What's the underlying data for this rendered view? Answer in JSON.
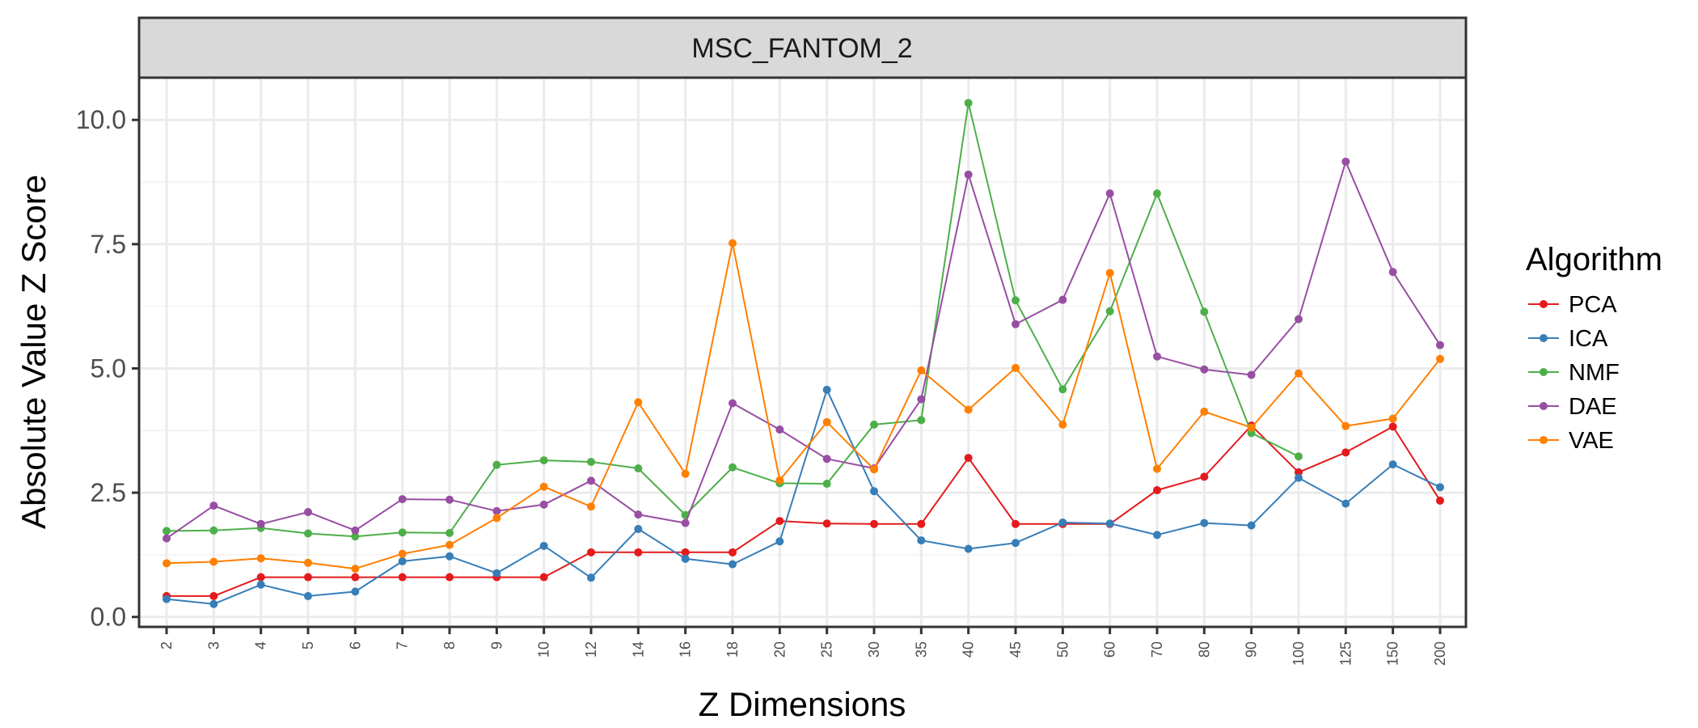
{
  "chart_data": {
    "type": "line",
    "panel_title": "MSC_FANTOM_2",
    "xlabel": "Z Dimensions",
    "ylabel": "Absolute Value Z Score",
    "categories": [
      "2",
      "3",
      "4",
      "5",
      "6",
      "7",
      "8",
      "9",
      "10",
      "12",
      "14",
      "16",
      "18",
      "20",
      "25",
      "30",
      "35",
      "40",
      "45",
      "50",
      "60",
      "70",
      "80",
      "90",
      "100",
      "125",
      "150",
      "200"
    ],
    "ylim": [
      -0.2,
      10.85
    ],
    "yticks": [
      0.0,
      2.5,
      5.0,
      7.5,
      10.0
    ],
    "ytick_labels": [
      "0.0",
      "2.5",
      "5.0",
      "7.5",
      "10.0"
    ],
    "grid": true,
    "legend": {
      "title": "Algorithm",
      "position": "right"
    },
    "series": [
      {
        "name": "PCA",
        "color": "#e41a1c",
        "values": [
          0.42,
          0.42,
          0.8,
          0.8,
          0.8,
          0.8,
          0.8,
          0.8,
          0.8,
          1.3,
          1.3,
          1.3,
          1.3,
          1.93,
          1.88,
          1.87,
          1.87,
          3.2,
          1.87,
          1.87,
          1.87,
          2.55,
          2.82,
          3.85,
          2.91,
          3.31,
          3.83,
          2.34
        ]
      },
      {
        "name": "ICA",
        "color": "#377eb8",
        "values": [
          0.36,
          0.26,
          0.65,
          0.42,
          0.51,
          1.12,
          1.22,
          0.88,
          1.43,
          0.79,
          1.77,
          1.17,
          1.06,
          1.52,
          4.57,
          2.53,
          1.54,
          1.37,
          1.49,
          1.9,
          1.88,
          1.65,
          1.89,
          1.84,
          2.8,
          2.28,
          3.07,
          2.61
        ]
      },
      {
        "name": "NMF",
        "color": "#4daf4a",
        "values": [
          1.73,
          1.74,
          1.79,
          1.68,
          1.62,
          1.7,
          1.69,
          3.06,
          3.15,
          3.12,
          2.99,
          2.05,
          3.01,
          2.69,
          2.68,
          3.87,
          3.96,
          10.34,
          6.37,
          4.58,
          6.15,
          8.52,
          6.14,
          3.7,
          3.23,
          null,
          null,
          null
        ]
      },
      {
        "name": "DAE",
        "color": "#984ea3",
        "values": [
          1.58,
          2.24,
          1.87,
          2.11,
          1.74,
          2.37,
          2.36,
          2.13,
          2.26,
          2.74,
          2.06,
          1.89,
          4.3,
          3.77,
          3.18,
          2.99,
          4.38,
          8.9,
          5.89,
          6.38,
          8.52,
          5.24,
          4.98,
          4.87,
          5.99,
          9.16,
          6.94,
          5.47
        ]
      },
      {
        "name": "VAE",
        "color": "#ff7f00",
        "values": [
          1.08,
          1.11,
          1.18,
          1.09,
          0.97,
          1.27,
          1.45,
          1.99,
          2.62,
          2.22,
          4.32,
          2.88,
          7.52,
          2.75,
          3.92,
          2.97,
          4.96,
          4.17,
          5.01,
          3.87,
          6.92,
          2.98,
          4.13,
          3.81,
          4.9,
          3.84,
          3.99,
          5.19
        ]
      }
    ]
  }
}
